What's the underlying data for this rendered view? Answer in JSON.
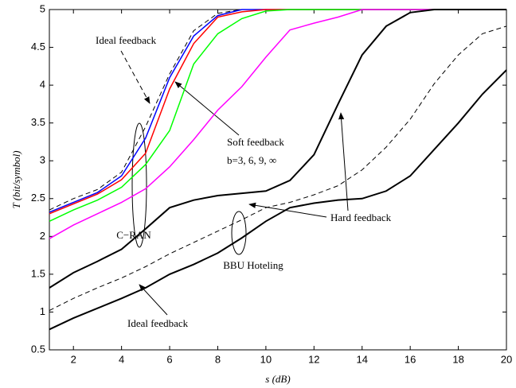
{
  "chart_data": {
    "type": "line",
    "x_label": "s (dB)",
    "y_label": "T (bit/symbol)",
    "annotations": [
      "Ideal feedback",
      "Soft feedback",
      "b=3, 6, 9, ∞",
      "C−RAN",
      "Hard feedback",
      "BBU Hoteling",
      "Ideal feedback"
    ],
    "x": [
      1,
      2,
      3,
      4,
      5,
      6,
      7,
      8,
      9,
      10,
      11,
      12,
      13,
      14,
      15,
      16,
      17,
      18,
      19,
      20
    ],
    "xlim": [
      1,
      20
    ],
    "xticks": [
      2,
      4,
      6,
      8,
      10,
      12,
      14,
      16,
      18,
      20
    ],
    "ylim": [
      0.5,
      5
    ],
    "yticks": [
      0.5,
      1,
      1.5,
      2,
      2.5,
      3,
      3.5,
      4,
      4.5,
      5
    ],
    "series": [
      {
        "color": "#000000",
        "dashed": true,
        "values": [
          2.35,
          2.5,
          2.62,
          2.85,
          3.45,
          4.15,
          4.72,
          4.95,
          5,
          5,
          5,
          5,
          5,
          5,
          5,
          5,
          5,
          5,
          5,
          5
        ]
      },
      {
        "color": "#0000ff",
        "values": [
          2.32,
          2.45,
          2.58,
          2.8,
          3.3,
          4.1,
          4.65,
          4.92,
          5,
          5,
          5,
          5,
          5,
          5,
          5,
          5,
          5,
          5,
          5,
          5
        ]
      },
      {
        "color": "#ff0000",
        "values": [
          2.3,
          2.43,
          2.56,
          2.75,
          3.1,
          3.95,
          4.55,
          4.9,
          4.97,
          5,
          5,
          5,
          5,
          5,
          5,
          5,
          5,
          5,
          5,
          5
        ]
      },
      {
        "color": "#00ff00",
        "values": [
          2.2,
          2.35,
          2.48,
          2.65,
          2.95,
          3.4,
          4.28,
          4.68,
          4.88,
          4.98,
          5,
          5,
          5,
          5,
          5,
          5,
          5,
          5,
          5,
          5
        ]
      },
      {
        "color": "#ff00ff",
        "values": [
          1.97,
          2.15,
          2.3,
          2.45,
          2.63,
          2.92,
          3.28,
          3.67,
          3.98,
          4.37,
          4.73,
          4.82,
          4.9,
          5,
          5,
          5,
          5,
          5,
          5,
          5
        ]
      },
      {
        "color": "#000000",
        "width": 2,
        "values": [
          1.32,
          1.52,
          1.67,
          1.83,
          2.1,
          2.38,
          2.48,
          2.54,
          2.57,
          2.6,
          2.74,
          3.08,
          3.75,
          4.4,
          4.78,
          4.96,
          5,
          5,
          5,
          5
        ]
      },
      {
        "color": "#000000",
        "dashed": true,
        "values": [
          1.02,
          1.18,
          1.32,
          1.45,
          1.6,
          1.77,
          1.92,
          2.07,
          2.22,
          2.38,
          2.45,
          2.55,
          2.67,
          2.88,
          3.18,
          3.55,
          4.02,
          4.4,
          4.68,
          4.78
        ]
      },
      {
        "color": "#000000",
        "width": 2,
        "values": [
          0.77,
          0.92,
          1.05,
          1.18,
          1.32,
          1.5,
          1.63,
          1.78,
          1.98,
          2.2,
          2.38,
          2.44,
          2.48,
          2.5,
          2.6,
          2.8,
          3.15,
          3.5,
          3.88,
          4.2
        ]
      }
    ]
  }
}
